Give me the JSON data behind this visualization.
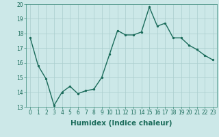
{
  "x": [
    0,
    1,
    2,
    3,
    4,
    5,
    6,
    7,
    8,
    9,
    10,
    11,
    12,
    13,
    14,
    15,
    16,
    17,
    18,
    19,
    20,
    21,
    22,
    23
  ],
  "y": [
    17.7,
    15.8,
    14.9,
    13.1,
    14.0,
    14.4,
    13.9,
    14.1,
    14.2,
    15.0,
    16.6,
    18.2,
    17.9,
    17.9,
    18.1,
    19.8,
    18.5,
    18.7,
    17.7,
    17.7,
    17.2,
    16.9,
    16.5,
    16.2
  ],
  "xlabel": "Humidex (Indice chaleur)",
  "line_color": "#1a6b5a",
  "marker_color": "#1a6b5a",
  "bg_color": "#cce8e8",
  "grid_color": "#aacece",
  "spine_color": "#3a8a7a",
  "ylim": [
    13,
    20
  ],
  "xlim_min": -0.5,
  "xlim_max": 23.5,
  "yticks": [
    13,
    14,
    15,
    16,
    17,
    18,
    19,
    20
  ],
  "xticks": [
    0,
    1,
    2,
    3,
    4,
    5,
    6,
    7,
    8,
    9,
    10,
    11,
    12,
    13,
    14,
    15,
    16,
    17,
    18,
    19,
    20,
    21,
    22,
    23
  ],
  "tick_fontsize": 5.5,
  "xlabel_fontsize": 7.5,
  "linewidth": 1.0,
  "markersize": 2.8
}
